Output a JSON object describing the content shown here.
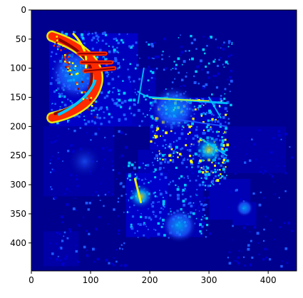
{
  "chart_data": {
    "type": "heatmap",
    "title": "",
    "xlabel": "",
    "ylabel": "",
    "colormap": "jet",
    "grid": false,
    "legend": "none",
    "image_size": [
      448,
      448
    ],
    "xlim": [
      0,
      448
    ],
    "ylim": [
      448,
      0
    ],
    "y_inverted": true,
    "x_ticks": [
      0,
      100,
      200,
      300,
      400
    ],
    "y_ticks": [
      0,
      50,
      100,
      150,
      200,
      250,
      300,
      350,
      400
    ],
    "colors": {
      "background": "#00008f",
      "low": "#0000cd",
      "mid_low": "#1e5aff",
      "mid": "#00c8ff",
      "mid_high": "#ffff00",
      "high": "#ff2a00",
      "peak": "#8b0000"
    },
    "hotspot_description": [
      {
        "label": "crescent arc",
        "value": "high"
      },
      {
        "label": "central structure",
        "value": "mid"
      }
    ]
  }
}
